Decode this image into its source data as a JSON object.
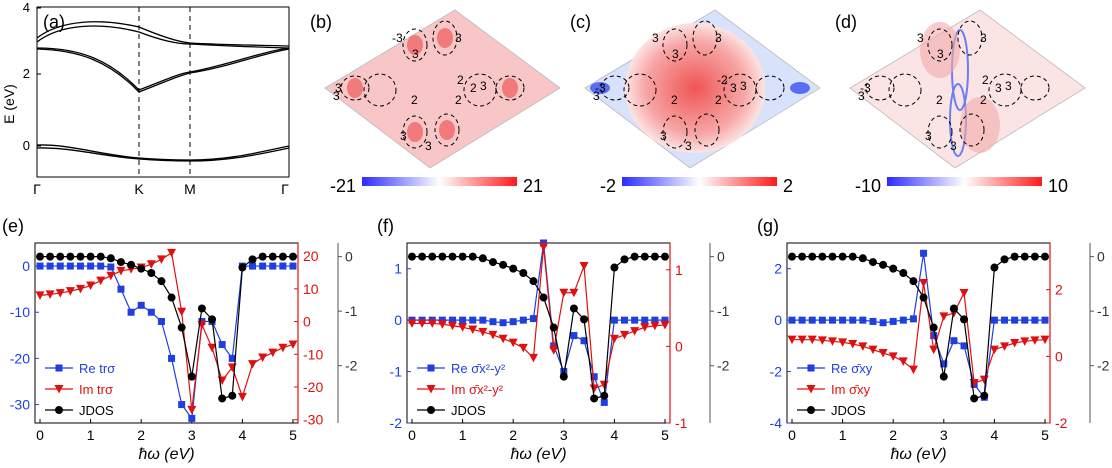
{
  "panels": {
    "a": {
      "label": "(a)",
      "ylabel": "E (eV)",
      "yticks": [
        "4",
        "2",
        "0"
      ],
      "xticks": [
        "Γ",
        "K",
        "M",
        "Γ"
      ]
    },
    "maps": [
      {
        "label": "(b)",
        "cbar_min": "-21",
        "cbar_max": "21",
        "region_labels": [
          "3",
          "2",
          "3",
          "2",
          "2",
          "3",
          "3",
          "2",
          "3",
          "-3",
          "3",
          "3"
        ]
      },
      {
        "label": "(c)",
        "cbar_min": "-2",
        "cbar_max": "2",
        "region_labels": [
          "3",
          "2",
          "3",
          "2",
          "-2",
          "-3",
          "3",
          "3",
          "3",
          "3",
          "3",
          "3"
        ]
      },
      {
        "label": "(d)",
        "cbar_min": "-10",
        "cbar_max": "10",
        "region_labels": [
          "3",
          "2",
          "3",
          "2",
          "2",
          "-3",
          "3",
          "3",
          "3",
          "3",
          "3",
          "3"
        ]
      }
    ]
  },
  "chart_data": [
    {
      "type": "line",
      "panel": "(e)",
      "xlabel": "ħω (eV)",
      "x": [
        0,
        0.1,
        0.2,
        0.3,
        0.4,
        0.5,
        0.6,
        0.7,
        0.8,
        0.9,
        1.0,
        1.1,
        1.2,
        1.3,
        1.4,
        1.5,
        1.6,
        1.7,
        1.8,
        1.9,
        2.0,
        2.1,
        2.2,
        2.3,
        2.4,
        2.5,
        2.6,
        2.7,
        2.8,
        2.9,
        3.0,
        3.1,
        3.2,
        3.3,
        3.4,
        3.5,
        3.6,
        3.7,
        3.8,
        3.9,
        4.0,
        4.1,
        4.2,
        4.3,
        4.4,
        4.5,
        4.6,
        4.7,
        4.8,
        4.9,
        5.0
      ],
      "x_markers_note": "",
      "xticks": [
        "0",
        "1",
        "2",
        "3",
        "4",
        "5"
      ],
      "left_axis": {
        "ticks": [
          "0",
          "-10",
          "-20",
          "-30"
        ],
        "ylim": [
          -34,
          5
        ]
      },
      "right_red_axis": {
        "ticks": [
          "20",
          "10",
          "0",
          "-10",
          "-20",
          "-30"
        ],
        "ylim": [
          -31,
          24
        ]
      },
      "right_gray_axis": {
        "ticks": [
          "0",
          "-1",
          "-2"
        ],
        "ylim": [
          -3.05,
          0.25
        ]
      },
      "series": [
        {
          "name": "Re trσ",
          "color": "#1f3fe0",
          "marker": "square",
          "axis": "left",
          "x": [
            0,
            0.2,
            0.4,
            0.6,
            0.8,
            1.0,
            1.2,
            1.4,
            1.6,
            1.8,
            2.0,
            2.2,
            2.4,
            2.6,
            2.8,
            3.0,
            3.2,
            3.4,
            3.6,
            3.8,
            4.0,
            4.2,
            4.4,
            4.6,
            4.8,
            5.0
          ],
          "y": [
            0,
            0,
            0,
            0,
            0,
            0,
            0,
            -0.2,
            -5,
            -10,
            -8.5,
            -10,
            -12,
            -20,
            -30,
            -33,
            -12,
            -12,
            -17,
            -20,
            0,
            0,
            0,
            0,
            0,
            0
          ]
        },
        {
          "name": "Im trσ",
          "color": "#e01010",
          "marker": "triangle-down",
          "axis": "right_red",
          "x": [
            0,
            0.2,
            0.4,
            0.6,
            0.8,
            1.0,
            1.2,
            1.4,
            1.6,
            1.8,
            2.0,
            2.2,
            2.4,
            2.6,
            2.8,
            3.0,
            3.2,
            3.4,
            3.6,
            3.8,
            4.0,
            4.2,
            4.4,
            4.6,
            4.8,
            5.0
          ],
          "y": [
            8,
            8.3,
            8.7,
            9.3,
            10,
            11,
            12.5,
            14,
            15.5,
            16,
            16.5,
            17.5,
            19,
            21,
            3,
            -27,
            -1,
            -8,
            -18,
            -14,
            -23,
            -13,
            -11,
            -9.5,
            -8,
            -7
          ]
        },
        {
          "name": "JDOS",
          "color": "#000000",
          "marker": "circle",
          "axis": "right_gray",
          "x": [
            0,
            0.2,
            0.4,
            0.6,
            0.8,
            1.0,
            1.2,
            1.4,
            1.6,
            1.8,
            2.0,
            2.2,
            2.4,
            2.6,
            2.8,
            3.0,
            3.2,
            3.4,
            3.6,
            3.8,
            4.0,
            4.2,
            4.4,
            4.6,
            4.8,
            5.0
          ],
          "y": [
            0,
            0,
            0,
            0,
            0,
            0,
            0,
            -0.03,
            -0.1,
            -0.15,
            -0.22,
            -0.3,
            -0.45,
            -0.75,
            -1.3,
            -2.2,
            -0.95,
            -1.15,
            -2.6,
            -2.55,
            -0.2,
            -0.05,
            0,
            0,
            0,
            0
          ]
        }
      ]
    },
    {
      "type": "line",
      "panel": "(f)",
      "xlabel": "ħω (eV)",
      "xticks": [
        "0",
        "1",
        "2",
        "3",
        "4",
        "5"
      ],
      "left_axis": {
        "ticks": [
          "1",
          "0",
          "-1",
          "-2"
        ],
        "ylim": [
          -2,
          1.5
        ]
      },
      "right_red_axis": {
        "ticks": [
          "1",
          "0",
          "-1"
        ],
        "ylim": [
          -1,
          1.35
        ]
      },
      "right_gray_axis": {
        "ticks": [
          "0",
          "-1",
          "-2"
        ],
        "ylim": [
          -3.05,
          0.25
        ]
      },
      "series": [
        {
          "name": "Re σ̄x²-y²",
          "color": "#1f3fe0",
          "marker": "square",
          "axis": "left",
          "x": [
            0,
            0.2,
            0.4,
            0.6,
            0.8,
            1.0,
            1.2,
            1.4,
            1.6,
            1.8,
            2.0,
            2.2,
            2.4,
            2.6,
            2.8,
            3.0,
            3.2,
            3.4,
            3.6,
            3.8,
            4.0,
            4.2,
            4.4,
            4.6,
            4.8,
            5.0
          ],
          "y": [
            0,
            0,
            0,
            0,
            0,
            0,
            0,
            0,
            -0.03,
            -0.05,
            -0.03,
            0,
            0.03,
            1.5,
            -0.5,
            -1.0,
            -0.3,
            -0.4,
            -1.1,
            -1.6,
            0,
            0,
            0,
            0,
            0,
            0
          ]
        },
        {
          "name": "Im σ̄x²-y²",
          "color": "#e01010",
          "marker": "triangle-down",
          "axis": "right_red",
          "x": [
            0,
            0.2,
            0.4,
            0.6,
            0.8,
            1.0,
            1.2,
            1.4,
            1.6,
            1.8,
            2.0,
            2.2,
            2.4,
            2.6,
            2.8,
            3.0,
            3.2,
            3.4,
            3.6,
            3.8,
            4.0,
            4.2,
            4.4,
            4.6,
            4.8,
            5.0
          ],
          "y": [
            0.3,
            0.3,
            0.3,
            0.29,
            0.27,
            0.25,
            0.22,
            0.19,
            0.15,
            0.1,
            0.05,
            -0.02,
            -0.15,
            1.3,
            -0.05,
            0.7,
            0.7,
            1.05,
            -0.55,
            -0.5,
            0.1,
            0.15,
            0.2,
            0.25,
            0.27,
            0.28
          ]
        },
        {
          "name": "JDOS",
          "color": "#000000",
          "marker": "circle",
          "axis": "right_gray",
          "x": [
            0,
            0.2,
            0.4,
            0.6,
            0.8,
            1.0,
            1.2,
            1.4,
            1.6,
            1.8,
            2.0,
            2.2,
            2.4,
            2.6,
            2.8,
            3.0,
            3.2,
            3.4,
            3.6,
            3.8,
            4.0,
            4.2,
            4.4,
            4.6,
            4.8,
            5.0
          ],
          "y": [
            0,
            0,
            0,
            0,
            0,
            0,
            0,
            -0.03,
            -0.1,
            -0.15,
            -0.22,
            -0.3,
            -0.45,
            -0.75,
            -1.3,
            -2.2,
            -0.95,
            -1.15,
            -2.6,
            -2.55,
            -0.2,
            -0.05,
            0,
            0,
            0,
            0
          ]
        }
      ]
    },
    {
      "type": "line",
      "panel": "(g)",
      "xlabel": "ħω (eV)",
      "xticks": [
        "0",
        "1",
        "2",
        "3",
        "4",
        "5"
      ],
      "left_axis": {
        "ticks": [
          "2",
          "0",
          "-2",
          "-4"
        ],
        "ylim": [
          -4,
          3
        ]
      },
      "right_red_axis": {
        "ticks": [
          "2",
          "0",
          "-2"
        ],
        "ylim": [
          -2,
          3.4
        ]
      },
      "right_gray_axis": {
        "ticks": [
          "0",
          "-1",
          "-2"
        ],
        "ylim": [
          -3.05,
          0.25
        ]
      },
      "series": [
        {
          "name": "Re σ̄xy",
          "color": "#1f3fe0",
          "marker": "square",
          "axis": "left",
          "x": [
            0,
            0.2,
            0.4,
            0.6,
            0.8,
            1.0,
            1.2,
            1.4,
            1.6,
            1.8,
            2.0,
            2.2,
            2.4,
            2.6,
            2.8,
            3.0,
            3.2,
            3.4,
            3.6,
            3.8,
            4.0,
            4.2,
            4.4,
            4.6,
            4.8,
            5.0
          ],
          "y": [
            0,
            0,
            0,
            0,
            0,
            0,
            0,
            0,
            -0.05,
            -0.1,
            -0.05,
            0,
            0.05,
            2.6,
            -0.6,
            -1.7,
            -0.8,
            -1.0,
            -2.5,
            -3.0,
            0,
            0,
            0,
            0,
            0,
            0
          ]
        },
        {
          "name": "Im σ̄xy",
          "color": "#e01010",
          "marker": "triangle-down",
          "axis": "right_red",
          "x": [
            0,
            0.2,
            0.4,
            0.6,
            0.8,
            1.0,
            1.2,
            1.4,
            1.6,
            1.8,
            2.0,
            2.2,
            2.4,
            2.6,
            2.8,
            3.0,
            3.2,
            3.4,
            3.6,
            3.8,
            4.0,
            4.2,
            4.4,
            4.6,
            4.8,
            5.0
          ],
          "y": [
            0.5,
            0.5,
            0.5,
            0.48,
            0.45,
            0.42,
            0.37,
            0.3,
            0.2,
            0.1,
            0,
            -0.15,
            -0.4,
            2.2,
            0.2,
            1.2,
            1.3,
            1.9,
            -0.8,
            -0.7,
            0.2,
            0.3,
            0.4,
            0.45,
            0.48,
            0.5
          ]
        },
        {
          "name": "JDOS",
          "color": "#000000",
          "marker": "circle",
          "axis": "right_gray",
          "x": [
            0,
            0.2,
            0.4,
            0.6,
            0.8,
            1.0,
            1.2,
            1.4,
            1.6,
            1.8,
            2.0,
            2.2,
            2.4,
            2.6,
            2.8,
            3.0,
            3.2,
            3.4,
            3.6,
            3.8,
            4.0,
            4.2,
            4.4,
            4.6,
            4.8,
            5.0
          ],
          "y": [
            0,
            0,
            0,
            0,
            0,
            0,
            0,
            -0.03,
            -0.1,
            -0.15,
            -0.22,
            -0.3,
            -0.45,
            -0.75,
            -1.3,
            -2.2,
            -0.95,
            -1.15,
            -2.6,
            -2.55,
            -0.2,
            -0.05,
            0,
            0,
            0,
            0
          ]
        }
      ]
    }
  ],
  "colors": {
    "blue": "#1f3fe0",
    "red": "#e01010",
    "black": "#000000",
    "gray_axis": "#555555"
  }
}
